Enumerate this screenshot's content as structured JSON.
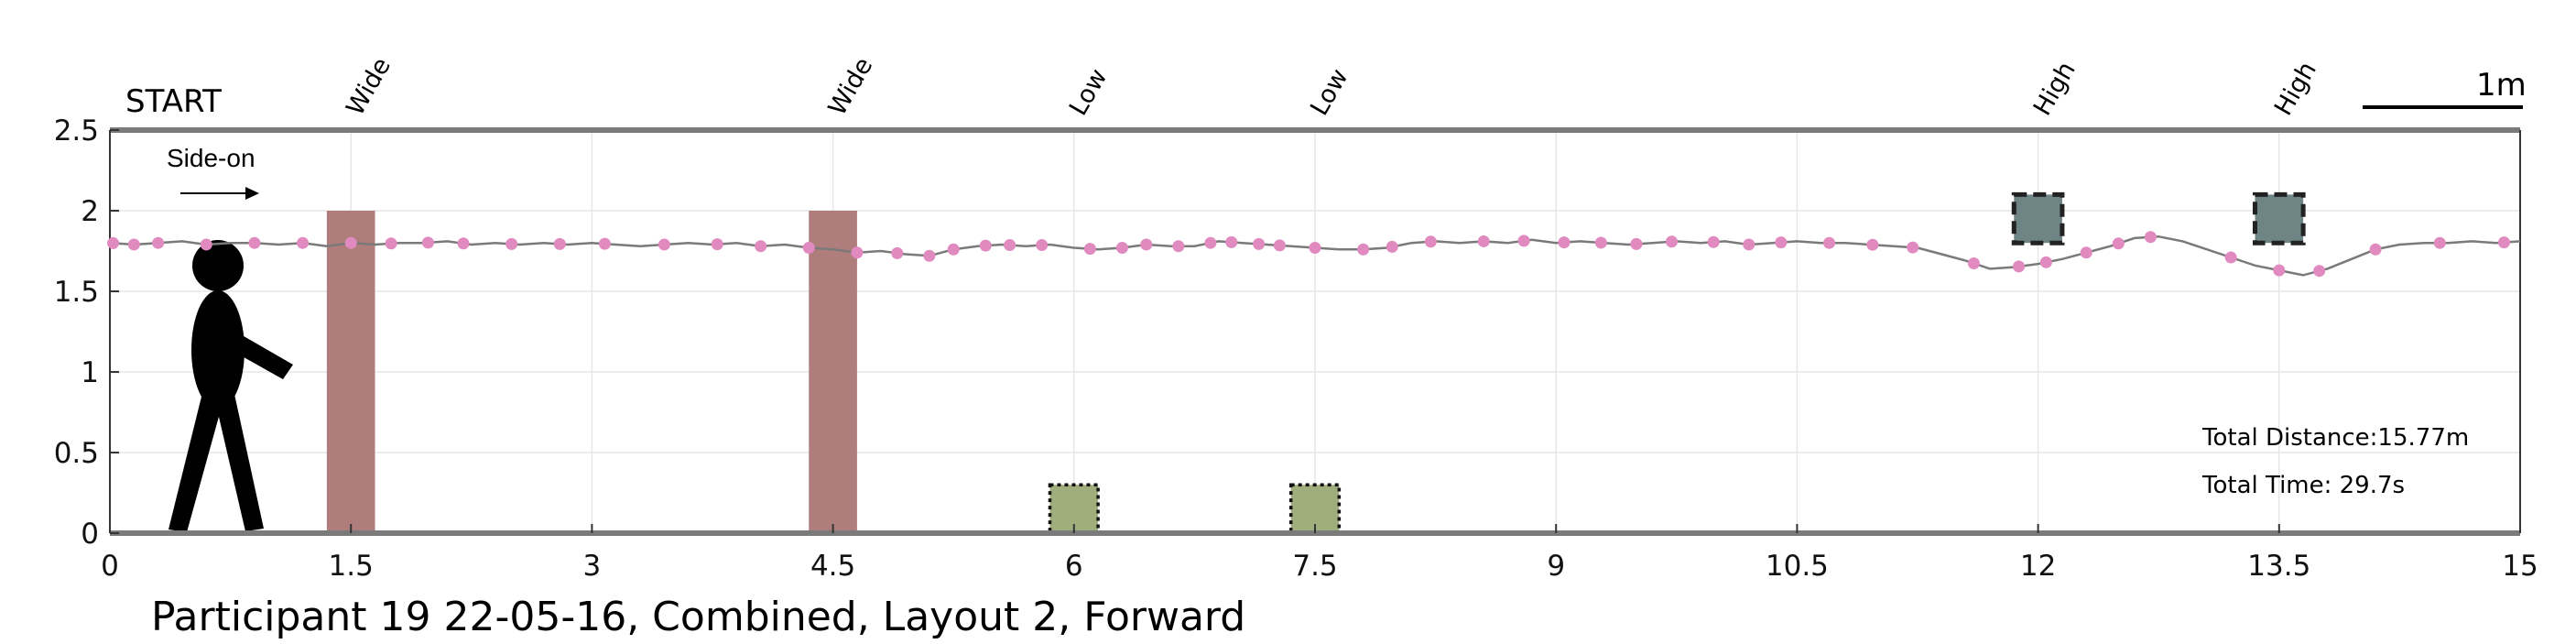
{
  "chart_data": {
    "type": "line",
    "xlim": [
      0,
      15
    ],
    "ylim": [
      0,
      2.5
    ],
    "x_ticks": [
      "0",
      "1.5",
      "3",
      "4.5",
      "6",
      "7.5",
      "9",
      "10.5",
      "12",
      "13.5",
      "15"
    ],
    "y_ticks": [
      "0",
      "0.5",
      "1",
      "1.5",
      "2",
      "2.5"
    ],
    "grid": true,
    "start_label": "START",
    "direction_label": "Side-on",
    "scale_label": "1m",
    "caption": "Participant 19 22-05-16, Combined, Layout 2, Forward",
    "total_distance": "Total Distance:15.77m",
    "total_time": "Total Time: 29.7s",
    "obstacles": [
      {
        "label": "Wide",
        "kind": "wide",
        "x_start": 1.35,
        "x_end": 1.65,
        "y_bottom": 0,
        "y_top": 2.0,
        "color": "#b07d7d"
      },
      {
        "label": "Wide",
        "kind": "wide",
        "x_start": 4.35,
        "x_end": 4.65,
        "y_bottom": 0,
        "y_top": 2.0,
        "color": "#b07d7d"
      },
      {
        "label": "Low",
        "kind": "low",
        "x_start": 5.85,
        "x_end": 6.15,
        "y_bottom": 0,
        "y_top": 0.3,
        "color": "#9fae7c"
      },
      {
        "label": "Low",
        "kind": "low",
        "x_start": 7.35,
        "x_end": 7.65,
        "y_bottom": 0,
        "y_top": 0.3,
        "color": "#9fae7c"
      },
      {
        "label": "High",
        "kind": "high",
        "x_start": 11.85,
        "x_end": 12.15,
        "y_bottom": 1.8,
        "y_top": 2.1,
        "color": "#6f8585"
      },
      {
        "label": "High",
        "kind": "high",
        "x_start": 13.35,
        "x_end": 13.65,
        "y_bottom": 1.8,
        "y_top": 2.1,
        "color": "#6f8585"
      }
    ],
    "series": [
      {
        "line_color": "#7a7a7a",
        "marker_color": "#e08ac0",
        "x": [
          0.0,
          0.15,
          0.3,
          0.45,
          0.6,
          0.75,
          0.9,
          1.05,
          1.2,
          1.35,
          1.5,
          1.65,
          1.8,
          1.95,
          2.1,
          2.25,
          2.4,
          2.55,
          2.7,
          2.85,
          3.0,
          3.15,
          3.3,
          3.45,
          3.6,
          3.75,
          3.9,
          4.05,
          4.2,
          4.35,
          4.5,
          4.65,
          4.8,
          4.95,
          5.1,
          5.25,
          5.4,
          5.55,
          5.7,
          5.85,
          6.0,
          6.15,
          6.3,
          6.45,
          6.6,
          6.75,
          6.9,
          7.05,
          7.2,
          7.35,
          7.5,
          7.65,
          7.8,
          7.95,
          8.1,
          8.25,
          8.4,
          8.55,
          8.7,
          8.85,
          9.0,
          9.15,
          9.3,
          9.45,
          9.6,
          9.75,
          9.9,
          10.05,
          10.2,
          10.35,
          10.5,
          10.65,
          10.8,
          10.95,
          11.1,
          11.25,
          11.4,
          11.55,
          11.7,
          11.85,
          12.0,
          12.15,
          12.3,
          12.45,
          12.6,
          12.75,
          12.9,
          13.05,
          13.2,
          13.35,
          13.5,
          13.65,
          13.8,
          13.95,
          14.1,
          14.25,
          14.4,
          14.55,
          14.7,
          14.85,
          15.0
        ],
        "y": [
          1.8,
          1.79,
          1.8,
          1.81,
          1.79,
          1.8,
          1.8,
          1.79,
          1.8,
          1.78,
          1.8,
          1.79,
          1.8,
          1.8,
          1.81,
          1.79,
          1.8,
          1.79,
          1.8,
          1.79,
          1.8,
          1.79,
          1.78,
          1.79,
          1.8,
          1.79,
          1.8,
          1.78,
          1.79,
          1.77,
          1.76,
          1.74,
          1.75,
          1.73,
          1.72,
          1.76,
          1.78,
          1.79,
          1.78,
          1.79,
          1.77,
          1.76,
          1.77,
          1.79,
          1.78,
          1.78,
          1.81,
          1.8,
          1.79,
          1.78,
          1.77,
          1.76,
          1.76,
          1.77,
          1.8,
          1.81,
          1.8,
          1.81,
          1.8,
          1.82,
          1.8,
          1.81,
          1.8,
          1.79,
          1.8,
          1.81,
          1.8,
          1.81,
          1.79,
          1.8,
          1.81,
          1.8,
          1.8,
          1.79,
          1.78,
          1.77,
          1.73,
          1.69,
          1.64,
          1.65,
          1.67,
          1.7,
          1.74,
          1.78,
          1.83,
          1.84,
          1.81,
          1.76,
          1.71,
          1.66,
          1.63,
          1.6,
          1.64,
          1.7,
          1.76,
          1.79,
          1.8,
          1.8,
          1.81,
          1.8,
          1.81
        ],
        "marker_x": [
          0.02,
          0.15,
          0.3,
          0.6,
          0.9,
          1.2,
          1.5,
          1.75,
          1.98,
          2.2,
          2.5,
          2.8,
          3.08,
          3.45,
          3.78,
          4.05,
          4.35,
          4.65,
          4.9,
          5.1,
          5.25,
          5.45,
          5.6,
          5.8,
          6.1,
          6.3,
          6.45,
          6.65,
          6.85,
          6.98,
          7.15,
          7.28,
          7.5,
          7.8,
          7.98,
          8.22,
          8.55,
          8.8,
          9.05,
          9.28,
          9.5,
          9.72,
          9.98,
          10.2,
          10.4,
          10.7,
          10.97,
          11.22,
          11.6,
          11.88,
          12.05,
          12.3,
          12.5,
          12.7,
          13.2,
          13.5,
          13.75,
          14.1,
          14.5,
          14.9
        ]
      }
    ]
  }
}
